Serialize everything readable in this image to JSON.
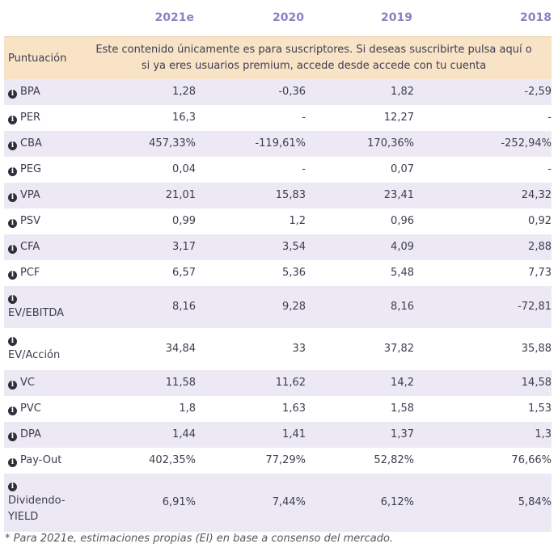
{
  "header": {
    "years": [
      "2021e",
      "2020",
      "2019",
      "2018"
    ]
  },
  "score": {
    "label": "Puntuación",
    "message_line1": "Este contenido únicamente es para suscriptores. Si deseas suscribirte pulsa aquí o",
    "message_line2": "si ya eres usuarios premium, accede desde accede con tu cuenta"
  },
  "rows": [
    {
      "label": "BPA",
      "values": [
        "1,28",
        "-0,36",
        "1,82",
        "-2,59"
      ]
    },
    {
      "label": "PER",
      "values": [
        "16,3",
        "-",
        "12,27",
        "-"
      ]
    },
    {
      "label": "CBA",
      "values": [
        "457,33%",
        "-119,61%",
        "170,36%",
        "-252,94%"
      ]
    },
    {
      "label": "PEG",
      "values": [
        "0,04",
        "-",
        "0,07",
        "-"
      ]
    },
    {
      "label": "VPA",
      "values": [
        "21,01",
        "15,83",
        "23,41",
        "24,32"
      ]
    },
    {
      "label": "PSV",
      "values": [
        "0,99",
        "1,2",
        "0,96",
        "0,92"
      ]
    },
    {
      "label": "CFA",
      "values": [
        "3,17",
        "3,54",
        "4,09",
        "2,88"
      ]
    },
    {
      "label": "PCF",
      "values": [
        "6,57",
        "5,36",
        "5,48",
        "7,73"
      ]
    },
    {
      "label": "EV/EBITDA",
      "values": [
        "8,16",
        "9,28",
        "8,16",
        "-72,81"
      ]
    },
    {
      "label": "EV/Acción",
      "values": [
        "34,84",
        "33",
        "37,82",
        "35,88"
      ]
    },
    {
      "label": "VC",
      "values": [
        "11,58",
        "11,62",
        "14,2",
        "14,58"
      ]
    },
    {
      "label": "PVC",
      "values": [
        "1,8",
        "1,63",
        "1,58",
        "1,53"
      ]
    },
    {
      "label": "DPA",
      "values": [
        "1,44",
        "1,41",
        "1,37",
        "1,3"
      ]
    },
    {
      "label": "Pay-Out",
      "values": [
        "402,35%",
        "77,29%",
        "52,82%",
        "76,66%"
      ]
    },
    {
      "label": "Dividendo-YIELD",
      "label_line1": "Dividendo-",
      "label_line2": "YIELD",
      "values": [
        "6,91%",
        "7,44%",
        "6,12%",
        "5,84%"
      ]
    }
  ],
  "footnote": "* Para 2021e, estimaciones propias (EI) en base a consenso del mercado."
}
